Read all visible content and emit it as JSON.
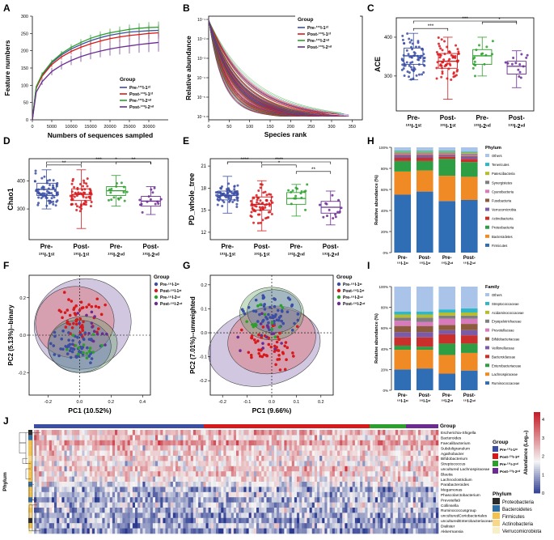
{
  "colors": {
    "pre1": "#3b4ea3",
    "post1": "#d7191c",
    "pre2": "#2ca02c",
    "post2": "#6a2c91",
    "grid": "#000000",
    "heat_low": "#2b3a8f",
    "heat_mid": "#f5f5f5",
    "heat_high": "#c41e2a",
    "phylum_proteo": "#2b2b2b",
    "phylum_bactero": "#2f6ea5",
    "phylum_firmi": "#f2c14e",
    "phylum_actino": "#f6d78b",
    "phylum_verru": "#f9efc7"
  },
  "panels": {
    "A": "A",
    "B": "B",
    "C": "C",
    "D": "D",
    "E": "E",
    "F": "F",
    "G": "G",
    "H": "H",
    "I": "I",
    "J": "J"
  },
  "groups": {
    "title": "Group",
    "labels": [
      "Pre-¹³¹I-1ˢᵗ",
      "Post-¹³¹I-1ˢᵗ",
      "Pre-¹³¹I-2ⁿᵈ",
      "Post-¹³¹I-2ⁿᵈ"
    ],
    "x_lines": [
      [
        "Pre-",
        "¹³¹I-1ˢᵗ"
      ],
      [
        "Post-",
        "¹³¹I-1ˢᵗ"
      ],
      [
        "Pre-",
        "¹³¹I-2ⁿᵈ"
      ],
      [
        "Post-",
        "¹³¹I-2ⁿᵈ"
      ]
    ],
    "short": [
      [
        "Pre-",
        "¹³¹I-1ˢᵗ"
      ],
      [
        "Post-",
        "¹³¹I-1ˢᵗ"
      ],
      [
        "Pre-",
        "¹³¹I-2ⁿᵈ"
      ],
      [
        "Post-",
        "¹³¹I-2ⁿᵈ"
      ]
    ]
  },
  "chart_data": [
    {
      "panel": "A",
      "type": "line",
      "xlabel": "Numbers of sequences sampled",
      "ylabel": "Feature numbers",
      "xlim": [
        0,
        35000
      ],
      "ylim": [
        0,
        300
      ],
      "x_ticks": [
        "0",
        "5000",
        "10000",
        "15000",
        "20000",
        "25000",
        "30000"
      ],
      "y_ticks": [
        "0",
        "50",
        "100",
        "150",
        "200",
        "250",
        "300"
      ],
      "legend_title": "Group",
      "legend_position": "bottom-right",
      "x": [
        0,
        1000,
        2500,
        5000,
        7500,
        10000,
        12500,
        15000,
        17500,
        20000,
        22500,
        25000,
        27500,
        30000,
        32500
      ],
      "series": [
        {
          "name": "Pre-¹³¹I-1ˢᵗ",
          "values": [
            0,
            95,
            130,
            165,
            188,
            205,
            218,
            229,
            238,
            245,
            250,
            254,
            256,
            258,
            259
          ]
        },
        {
          "name": "Post-¹³¹I-1ˢᵗ",
          "values": [
            0,
            92,
            126,
            160,
            182,
            198,
            210,
            220,
            228,
            235,
            240,
            244,
            247,
            250,
            252
          ]
        },
        {
          "name": "Pre-¹³¹I-2ⁿᵈ",
          "values": [
            0,
            96,
            132,
            168,
            192,
            210,
            224,
            236,
            245,
            252,
            257,
            262,
            265,
            267,
            268
          ]
        },
        {
          "name": "Post-¹³¹I-2ⁿᵈ",
          "values": [
            0,
            80,
            110,
            140,
            158,
            172,
            183,
            192,
            199,
            205,
            210,
            214,
            218,
            221,
            224
          ]
        }
      ]
    },
    {
      "panel": "B",
      "type": "line",
      "xlabel": "Species rank",
      "ylabel": "Relative abundance",
      "xlim": [
        0,
        375
      ],
      "y_ticks": [
        "10⁻¹",
        "10⁻²",
        "10⁻³",
        "10⁻⁴",
        "10⁻⁵",
        "10⁻⁶"
      ],
      "x_ticks": [
        "0",
        "50",
        "100",
        "150",
        "200",
        "250",
        "300",
        "350"
      ],
      "legend_title": "Group",
      "legend_position": "top-right"
    },
    {
      "panel": "C",
      "type": "box",
      "ylabel": "ACE",
      "y_ticks": [
        "300",
        "400"
      ],
      "ylim": [
        210,
        450
      ],
      "boxes": [
        {
          "q1": 330,
          "median": 352,
          "q3": 372,
          "min": 290,
          "max": 410
        },
        {
          "q1": 320,
          "median": 338,
          "q3": 358,
          "min": 240,
          "max": 400
        },
        {
          "q1": 330,
          "median": 352,
          "q3": 368,
          "min": 300,
          "max": 400
        },
        {
          "q1": 305,
          "median": 325,
          "q3": 338,
          "min": 270,
          "max": 365
        }
      ],
      "signif": [
        {
          "from": 0,
          "to": 1,
          "label": "***"
        },
        {
          "from": 2,
          "to": 3,
          "label": "*"
        },
        {
          "from": 0,
          "to": 3,
          "label": "***"
        }
      ]
    },
    {
      "panel": "D",
      "type": "box",
      "ylabel": "Chao1",
      "y_ticks": [
        "300",
        "400"
      ],
      "ylim": [
        190,
        480
      ],
      "boxes": [
        {
          "q1": 348,
          "median": 370,
          "q3": 392,
          "min": 300,
          "max": 440
        },
        {
          "q1": 330,
          "median": 352,
          "q3": 372,
          "min": 230,
          "max": 440
        },
        {
          "q1": 348,
          "median": 365,
          "q3": 380,
          "min": 310,
          "max": 420
        },
        {
          "q1": 310,
          "median": 328,
          "q3": 345,
          "min": 280,
          "max": 380
        }
      ],
      "signif": [
        {
          "from": 0,
          "to": 1,
          "label": "**"
        },
        {
          "from": 2,
          "to": 3,
          "label": "**"
        },
        {
          "from": 1,
          "to": 3,
          "label": "*"
        },
        {
          "from": 0,
          "to": 3,
          "label": "***"
        }
      ]
    },
    {
      "panel": "E",
      "type": "box",
      "ylabel": "PD_whole_tree",
      "y_ticks": [
        "12",
        "15",
        "18",
        "21"
      ],
      "ylim": [
        11,
        22
      ],
      "boxes": [
        {
          "q1": 16.4,
          "median": 17.0,
          "q3": 17.6,
          "min": 14.6,
          "max": 19.6
        },
        {
          "q1": 15.0,
          "median": 15.8,
          "q3": 16.8,
          "min": 12.2,
          "max": 19.0
        },
        {
          "q1": 15.8,
          "median": 16.6,
          "q3": 17.4,
          "min": 14.2,
          "max": 18.5
        },
        {
          "q1": 14.6,
          "median": 15.4,
          "q3": 16.2,
          "min": 13.0,
          "max": 17.6
        }
      ],
      "signif": [
        {
          "from": 2,
          "to": 3,
          "label": "**"
        },
        {
          "from": 1,
          "to": 2,
          "label": "*"
        },
        {
          "from": 0,
          "to": 1,
          "label": "****"
        },
        {
          "from": 0,
          "to": 3,
          "label": "****"
        }
      ]
    },
    {
      "panel": "F",
      "type": "scatter",
      "xlabel": "PC1 (10.52%)",
      "ylabel": "PC2 (5.13%)--binary",
      "x_ticks": [
        "-0.2",
        "0.0",
        "0.2",
        "0.4"
      ],
      "y_ticks": [
        "-0.2",
        "0.0",
        "0.2"
      ],
      "legend_title": "Group",
      "legend_position": "right"
    },
    {
      "panel": "G",
      "type": "scatter",
      "xlabel": "PC1 (9.66%)",
      "ylabel": "PC2 (7.01%)--unweighted",
      "x_ticks": [
        "-0.2",
        "-0.1",
        "0.0",
        "0.1",
        "0.2"
      ],
      "y_ticks": [
        "-0.2",
        "-0.1",
        "0.0",
        "0.1",
        "0.2"
      ],
      "legend_title": "Group",
      "legend_position": "right"
    },
    {
      "panel": "H",
      "type": "bar",
      "stacked": true,
      "ylabel": "Relative abundance (%)",
      "y_ticks": [
        "0%",
        "20%",
        "40%",
        "60%",
        "80%",
        "100%"
      ],
      "legend_title": "Phylum",
      "legend_position": "right",
      "categories": [
        "Pre-¹³¹I-1ˢᵗ",
        "Post-¹³¹I-1ˢᵗ",
        "Pre-¹³¹I-2ⁿᵈ",
        "Post-¹³¹I-2ⁿᵈ"
      ],
      "series": [
        {
          "name": "Firmicutes",
          "values": [
            55,
            58,
            49,
            50
          ]
        },
        {
          "name": "Bacteroidetes",
          "values": [
            22,
            20,
            24,
            22
          ]
        },
        {
          "name": "Proteobacteria",
          "values": [
            10,
            9,
            16,
            14
          ]
        },
        {
          "name": "Actinobacteria",
          "values": [
            3,
            3,
            2,
            3
          ]
        },
        {
          "name": "Verrucomicrobia",
          "values": [
            2,
            2,
            1,
            2
          ]
        },
        {
          "name": "Fusobacteria",
          "values": [
            1,
            1,
            1,
            1
          ]
        },
        {
          "name": "Cyanobacteria",
          "values": [
            1,
            1,
            1,
            1
          ]
        },
        {
          "name": "Synergistetes",
          "values": [
            1,
            1,
            1,
            1
          ]
        },
        {
          "name": "Patescibacteria",
          "values": [
            1,
            1,
            1,
            1
          ]
        },
        {
          "name": "Tenericutes",
          "values": [
            1,
            1,
            1,
            1
          ]
        },
        {
          "name": "Others",
          "values": [
            3,
            3,
            3,
            4
          ]
        }
      ],
      "series_colors": [
        "#2f6db5",
        "#f08a24",
        "#2e9e44",
        "#c9302c",
        "#7b5aa6",
        "#8c5a3c",
        "#d77bbd",
        "#7f7f7f",
        "#b5bd2e",
        "#2fb6c7",
        "#a9c4e8"
      ]
    },
    {
      "panel": "I",
      "type": "bar",
      "stacked": true,
      "ylabel": "Relative abundance (%)",
      "y_ticks": [
        "0%",
        "20%",
        "40%",
        "60%",
        "80%",
        "100%"
      ],
      "legend_title": "Family",
      "legend_position": "right",
      "categories": [
        "Pre-¹³¹I-1ˢᵗ",
        "Post-¹³¹I-1ˢᵗ",
        "Pre-¹³¹I-2ⁿᵈ",
        "Post-¹³¹I-2ⁿᵈ"
      ],
      "series": [
        {
          "name": "Ruminococcaceae",
          "values": [
            20,
            21,
            16,
            19
          ]
        },
        {
          "name": "Lachnospiraceae",
          "values": [
            19,
            18,
            18,
            17
          ]
        },
        {
          "name": "Enterobacteriaceae",
          "values": [
            4,
            3,
            11,
            9
          ]
        },
        {
          "name": "Bacteroidaceae",
          "values": [
            8,
            9,
            9,
            8
          ]
        },
        {
          "name": "Veillonellaceae",
          "values": [
            5,
            5,
            4,
            5
          ]
        },
        {
          "name": "Bifidobacteriaceae",
          "values": [
            6,
            6,
            5,
            6
          ]
        },
        {
          "name": "Prevotellaceae",
          "values": [
            5,
            4,
            6,
            5
          ]
        },
        {
          "name": "Erysipelotrichaceae",
          "values": [
            3,
            4,
            3,
            3
          ]
        },
        {
          "name": "Acidaminococcaceae",
          "values": [
            3,
            3,
            3,
            3
          ]
        },
        {
          "name": "Streptococcaceae",
          "values": [
            3,
            3,
            3,
            4
          ]
        },
        {
          "name": "Others",
          "values": [
            24,
            24,
            22,
            21
          ]
        }
      ],
      "series_colors": [
        "#2f6db5",
        "#f08a24",
        "#2e9e44",
        "#c9302c",
        "#7b5aa6",
        "#8c5a3c",
        "#d77bbd",
        "#7f7f7f",
        "#b5bd2e",
        "#2fb6c7",
        "#a9c4e8"
      ]
    },
    {
      "panel": "J",
      "type": "heatmap",
      "legend_title": "Abundance (Log₁₀)",
      "scale_ticks": [
        "0",
        "1",
        "2",
        "3",
        "4"
      ],
      "group_title": "Group",
      "phylum_title": "Phylum",
      "row_axis_title": "Phylum",
      "rows": [
        "Escherichia-Shigella",
        "Bacteroides",
        "Faecalibacterium",
        "Subdoligranulum",
        "Agathobacter",
        "Bifidobacterium",
        "Streptococcus",
        "uncultured Lachnospiraceae",
        "Blautia",
        "Lachnoclostridium",
        "Parabacteroides",
        "Megamonas",
        "Phascolarctobacterium",
        "Prevotella9",
        "Collinsella",
        "Ruminococcusgroup",
        "unculturedCoriobacteriales",
        "unculturedEnterobacteriaceae",
        "Dialister",
        "Akkermansia"
      ],
      "group_legend": [
        "Pre-¹³¹I-1ˢᵗ",
        "Post-¹³¹I-1ˢᵗ",
        "Pre-¹³¹I-2ⁿᵈ",
        "Post-¹³¹I-2ⁿᵈ"
      ],
      "phylum_legend": [
        "Proteobacteria",
        "Bacteroidetes",
        "Firmicutes",
        "Actinobacteria",
        "Verrucomicrobiota"
      ]
    }
  ]
}
